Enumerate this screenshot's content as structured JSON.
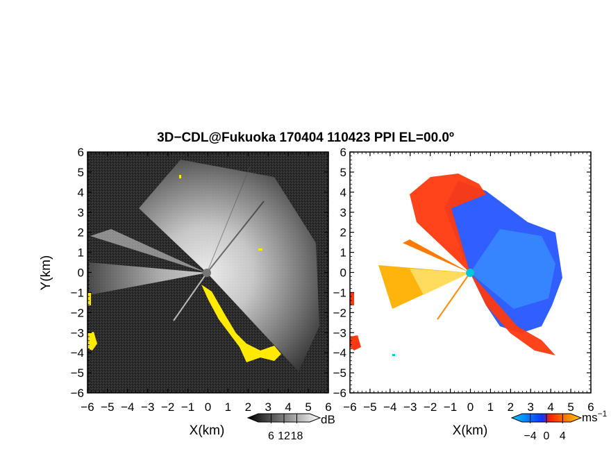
{
  "figure": {
    "title": "3D−CDL@Fukuoka 170404 110423 PPI EL=00.0º"
  },
  "chart_data": [
    {
      "type": "heatmap",
      "panel": "left",
      "quantity": "backscatter intensity",
      "xlabel": "X(km)",
      "ylabel": "Y(km)",
      "xlim": [
        -6,
        6
      ],
      "ylim": [
        -6,
        6
      ],
      "xticks": [
        "−6",
        "−5",
        "−4",
        "−3",
        "−2",
        "−1",
        "0",
        "1",
        "2",
        "3",
        "4",
        "5",
        "6"
      ],
      "yticks": [
        "6",
        "5",
        "4",
        "3",
        "2",
        "1",
        "0",
        "−1",
        "−2",
        "−3",
        "−4",
        "−5",
        "−6"
      ],
      "colorbar": {
        "unit": "dB",
        "ticks": [
          6,
          12,
          18
        ],
        "tick_labels": [
          "6",
          "12",
          "18"
        ],
        "colors": [
          "#000000",
          "#ffffff"
        ]
      },
      "colors": {
        "background": "#2b2b2b",
        "high": "#ffffff",
        "highlight": "#ffea00"
      },
      "radar_site": [
        0,
        0
      ]
    },
    {
      "type": "heatmap",
      "panel": "right",
      "quantity": "Doppler velocity",
      "xlabel": "X(km)",
      "ylabel": "",
      "xlim": [
        -6,
        6
      ],
      "ylim": [
        -6,
        6
      ],
      "xticks": [
        "−6",
        "−5",
        "−4",
        "−3",
        "−2",
        "−1",
        "0",
        "1",
        "2",
        "3",
        "4",
        "5",
        "6"
      ],
      "colorbar": {
        "unit": "ms",
        "unit_exp": "−1",
        "ticks": [
          -4,
          0,
          4
        ],
        "tick_labels": [
          "−4",
          "0",
          "4"
        ],
        "colors": [
          "#00c8ff",
          "#1030ff",
          "#ff2000",
          "#ffd000"
        ]
      },
      "colors": {
        "background": "#ffffff",
        "approach": "#1a4cff",
        "recede": "#ff3a10",
        "strong_recede": "#ffb000"
      },
      "radar_site": [
        0,
        0
      ]
    }
  ]
}
